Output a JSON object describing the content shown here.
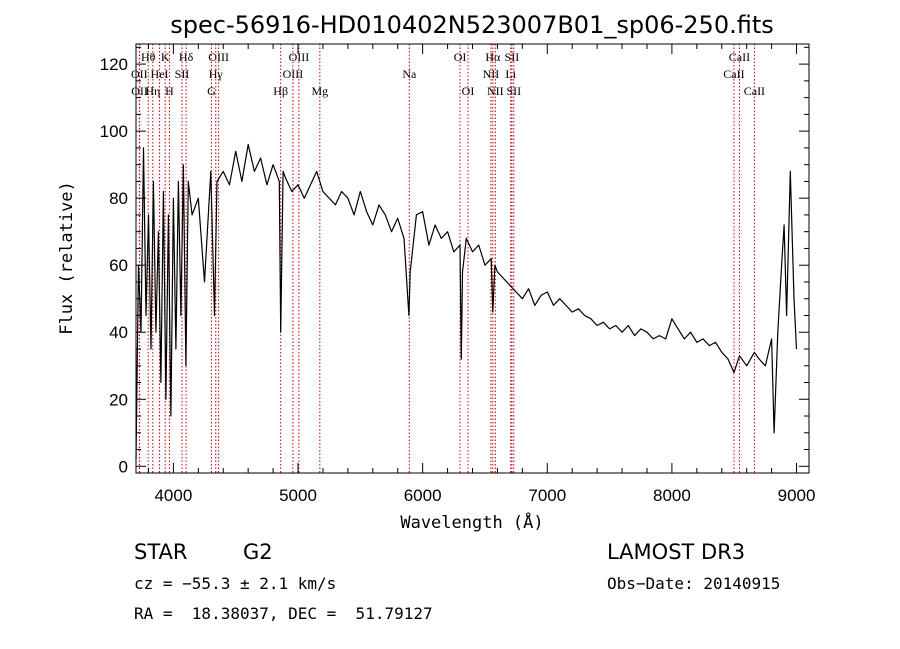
{
  "chart_data": {
    "type": "line",
    "title": "spec-56916-HD010402N523007B01_sp06-250.fits",
    "xlabel": "Wavelength (Å)",
    "ylabel": "Flux (relative)",
    "xlim": [
      3700,
      9100
    ],
    "ylim": [
      -2,
      126
    ],
    "xticks": [
      4000,
      5000,
      6000,
      7000,
      8000,
      9000
    ],
    "yticks": [
      0,
      20,
      40,
      60,
      80,
      100,
      120
    ],
    "series": [
      {
        "name": "flux",
        "x": [
          3700,
          3720,
          3740,
          3760,
          3780,
          3800,
          3820,
          3840,
          3860,
          3880,
          3900,
          3920,
          3940,
          3960,
          3980,
          4000,
          4020,
          4040,
          4060,
          4080,
          4100,
          4120,
          4150,
          4200,
          4250,
          4300,
          4330,
          4350,
          4400,
          4450,
          4500,
          4550,
          4600,
          4650,
          4700,
          4750,
          4800,
          4850,
          4861,
          4880,
          4900,
          4950,
          5000,
          5050,
          5100,
          5150,
          5200,
          5250,
          5300,
          5350,
          5400,
          5450,
          5500,
          5550,
          5600,
          5650,
          5700,
          5750,
          5800,
          5850,
          5890,
          5900,
          5950,
          6000,
          6050,
          6100,
          6150,
          6200,
          6250,
          6300,
          6310,
          6320,
          6350,
          6400,
          6450,
          6500,
          6550,
          6563,
          6580,
          6600,
          6650,
          6700,
          6750,
          6800,
          6850,
          6900,
          6950,
          7000,
          7050,
          7100,
          7150,
          7200,
          7250,
          7300,
          7350,
          7400,
          7450,
          7500,
          7550,
          7600,
          7650,
          7700,
          7750,
          7800,
          7850,
          7900,
          7950,
          8000,
          8050,
          8100,
          8150,
          8200,
          8250,
          8300,
          8350,
          8400,
          8450,
          8498,
          8542,
          8600,
          8662,
          8700,
          8750,
          8800,
          8820,
          8850,
          8880,
          8900,
          8920,
          8950,
          8980,
          9000
        ],
        "y": [
          2,
          60,
          40,
          95,
          45,
          75,
          35,
          85,
          40,
          70,
          25,
          82,
          20,
          75,
          15,
          80,
          35,
          85,
          45,
          90,
          30,
          85,
          75,
          80,
          55,
          88,
          45,
          85,
          88,
          84,
          94,
          85,
          96,
          88,
          92,
          84,
          90,
          85,
          40,
          88,
          86,
          82,
          84,
          80,
          84,
          88,
          82,
          80,
          78,
          82,
          80,
          75,
          82,
          76,
          72,
          78,
          75,
          70,
          74,
          68,
          45,
          58,
          75,
          76,
          66,
          72,
          68,
          70,
          64,
          66,
          32,
          58,
          68,
          64,
          66,
          60,
          62,
          46,
          60,
          58,
          56,
          54,
          52,
          50,
          53,
          48,
          51,
          52,
          48,
          50,
          48,
          46,
          47,
          45,
          44,
          42,
          43,
          41,
          42,
          40,
          42,
          39,
          41,
          40,
          38,
          39,
          38,
          44,
          41,
          38,
          40,
          37,
          38,
          36,
          37,
          34,
          32,
          28,
          33,
          30,
          34,
          32,
          30,
          38,
          10,
          40,
          60,
          72,
          45,
          88,
          50,
          35
        ]
      }
    ],
    "lines": [
      {
        "name": "Hθ",
        "x": 3798,
        "row": 0
      },
      {
        "name": "OII",
        "x": 3727,
        "row": 1
      },
      {
        "name": "OII",
        "x": 3729,
        "row": 2
      },
      {
        "name": "HeI",
        "x": 3889,
        "row": 1
      },
      {
        "name": "Hη",
        "x": 3835,
        "row": 2
      },
      {
        "name": "K",
        "x": 3934,
        "row": 0
      },
      {
        "name": "SII",
        "x": 4069,
        "row": 1
      },
      {
        "name": "H",
        "x": 3968,
        "row": 2
      },
      {
        "name": "Hδ",
        "x": 4102,
        "row": 0
      },
      {
        "name": "OIII",
        "x": 4363,
        "row": 0
      },
      {
        "name": "Hγ",
        "x": 4340,
        "row": 1
      },
      {
        "name": "G",
        "x": 4305,
        "row": 2
      },
      {
        "name": "Hβ",
        "x": 4861,
        "row": 2
      },
      {
        "name": "OIII",
        "x": 4959,
        "row": 1
      },
      {
        "name": "OIII",
        "x": 5007,
        "row": 0
      },
      {
        "name": "Mg",
        "x": 5175,
        "row": 2
      },
      {
        "name": "Na",
        "x": 5893,
        "row": 1
      },
      {
        "name": "OI",
        "x": 6300,
        "row": 0
      },
      {
        "name": "OI",
        "x": 6364,
        "row": 2
      },
      {
        "name": "Hα",
        "x": 6563,
        "row": 0
      },
      {
        "name": "NII",
        "x": 6548,
        "row": 1
      },
      {
        "name": "NII",
        "x": 6583,
        "row": 2
      },
      {
        "name": "SII",
        "x": 6716,
        "row": 0
      },
      {
        "name": "Li",
        "x": 6707,
        "row": 1
      },
      {
        "name": "SII",
        "x": 6731,
        "row": 2
      },
      {
        "name": "CaII",
        "x": 8542,
        "row": 0
      },
      {
        "name": "CaII",
        "x": 8498,
        "row": 1
      },
      {
        "name": "CaII",
        "x": 8662,
        "row": 2
      }
    ]
  },
  "info": {
    "object_class": "STAR",
    "subclass": "G2",
    "survey": "LAMOST DR3",
    "cz": "cz = −55.3 ± 2.1 km/s",
    "obs_date": "Obs−Date: 20140915",
    "coords": "RA =  18.38037, DEC =  51.79127"
  },
  "colors": {
    "spectrum": "#000000",
    "line_markers": "#c00000"
  }
}
